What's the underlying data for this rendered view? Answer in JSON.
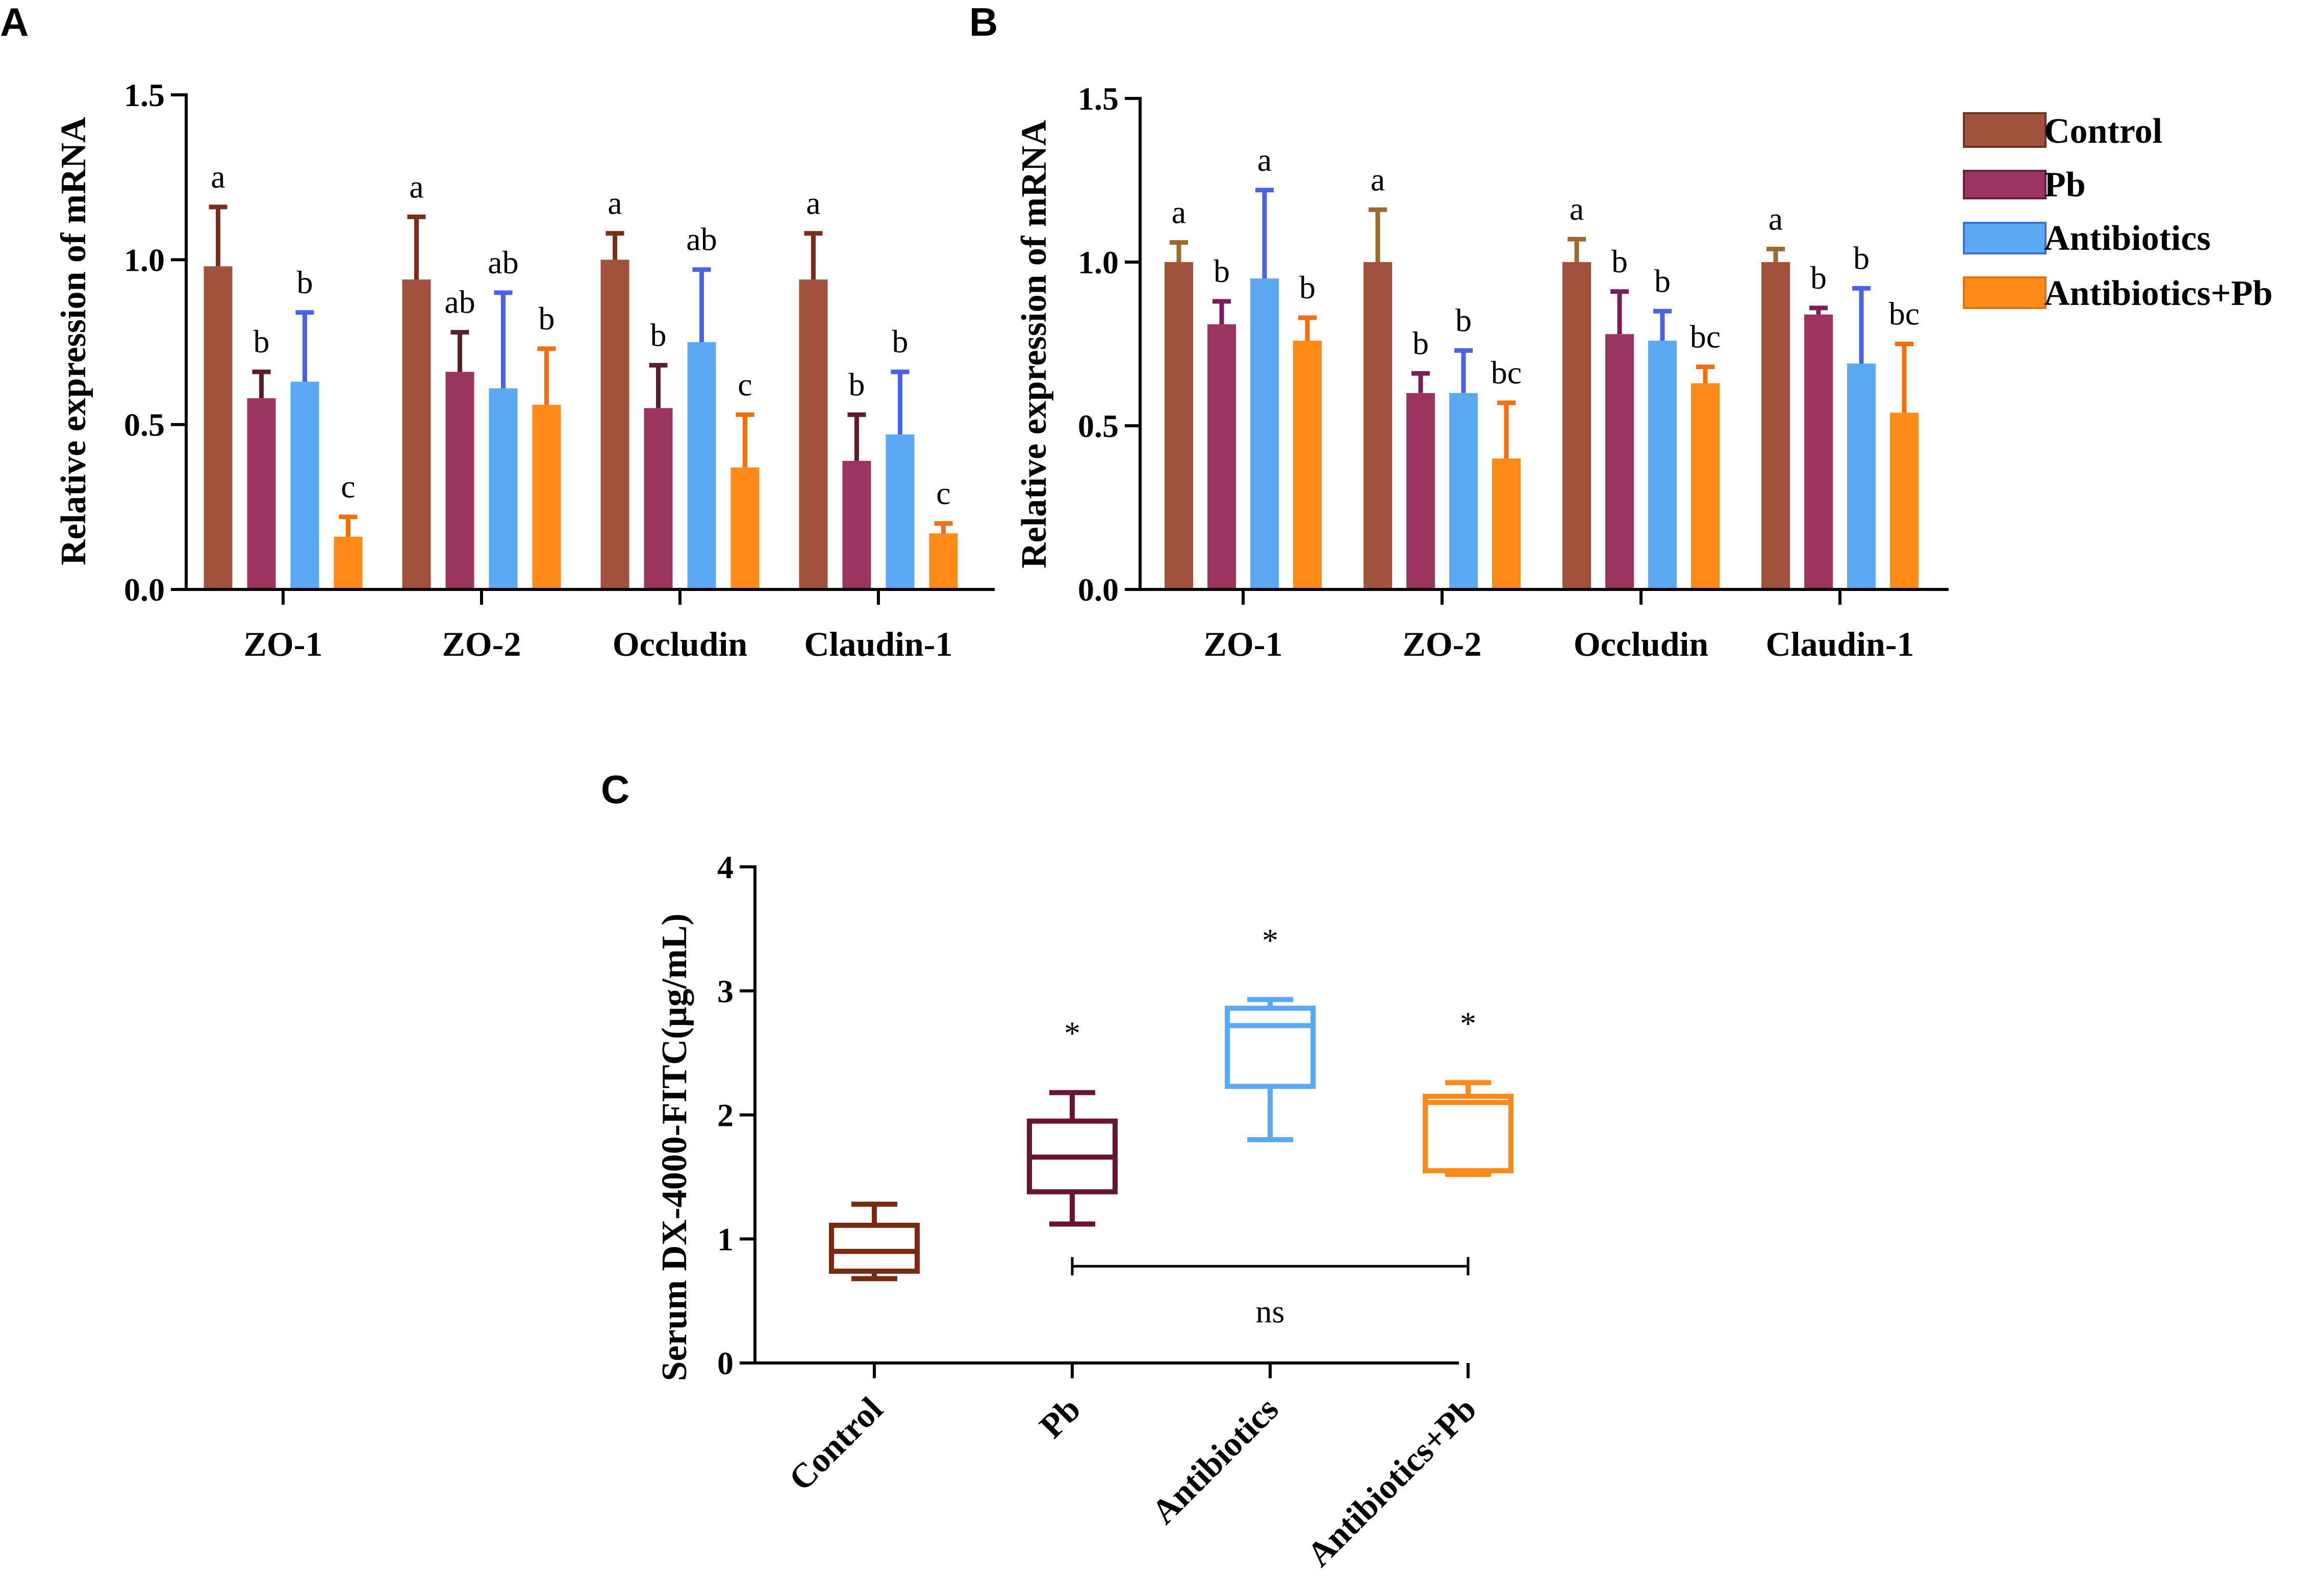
{
  "panels": {
    "a": "A",
    "b": "B",
    "c": "C"
  },
  "legend": {
    "position": "top-right",
    "items": [
      {
        "label": "Control",
        "color": "#A0523D"
      },
      {
        "label": "Pb",
        "color": "#9C3460"
      },
      {
        "label": "Antibiotics",
        "color": "#5AA9F2"
      },
      {
        "label": "Antibiotics+Pb",
        "color": "#FF8A18"
      }
    ]
  },
  "chart_data": [
    {
      "panel": "A",
      "type": "bar",
      "ylabel": "Relative expression of mRNA",
      "ylim": [
        0,
        1.5
      ],
      "yticks": [
        "0.0",
        "0.5",
        "1.0",
        "1.5"
      ],
      "categories": [
        "ZO-1",
        "ZO-2",
        "Occludin",
        "Claudin-1"
      ],
      "series": [
        {
          "name": "Control",
          "fill": "#A0523D",
          "err_color": "#7A2E1A",
          "values": [
            0.98,
            0.94,
            1.0,
            0.94
          ],
          "errors": [
            0.18,
            0.19,
            0.08,
            0.14
          ],
          "letters": [
            "a",
            "a",
            "a",
            "a"
          ]
        },
        {
          "name": "Pb",
          "fill": "#9C3460",
          "err_color": "#5A1E2A",
          "values": [
            0.58,
            0.66,
            0.55,
            0.39
          ],
          "errors": [
            0.08,
            0.12,
            0.13,
            0.14
          ],
          "letters": [
            "b",
            "ab",
            "b",
            "b"
          ]
        },
        {
          "name": "Antibiotics",
          "fill": "#5AA9F2",
          "err_color": "#4A62E8",
          "values": [
            0.63,
            0.61,
            0.75,
            0.47
          ],
          "errors": [
            0.21,
            0.29,
            0.22,
            0.19
          ],
          "letters": [
            "b",
            "ab",
            "ab",
            "b"
          ]
        },
        {
          "name": "Antibiotics+Pb",
          "fill": "#FF8A18",
          "err_color": "#F07010",
          "values": [
            0.16,
            0.56,
            0.37,
            0.17
          ],
          "errors": [
            0.06,
            0.17,
            0.16,
            0.03
          ],
          "letters": [
            "c",
            "b",
            "c",
            "c"
          ]
        }
      ]
    },
    {
      "panel": "B",
      "type": "bar",
      "ylabel": "Relative expression of mRNA",
      "ylim": [
        0,
        1.5
      ],
      "yticks": [
        "0.0",
        "0.5",
        "1.0",
        "1.5"
      ],
      "categories": [
        "ZO-1",
        "ZO-2",
        "Occludin",
        "Claudin-1"
      ],
      "series": [
        {
          "name": "Control",
          "fill": "#A0523D",
          "err_color": "#9A6A2E",
          "values": [
            1.0,
            1.0,
            1.0,
            1.0
          ],
          "errors": [
            0.06,
            0.16,
            0.07,
            0.04
          ],
          "letters": [
            "a",
            "a",
            "a",
            "a"
          ]
        },
        {
          "name": "Pb",
          "fill": "#9C3460",
          "err_color": "#7A1E5A",
          "values": [
            0.81,
            0.6,
            0.78,
            0.84
          ],
          "errors": [
            0.07,
            0.06,
            0.13,
            0.02
          ],
          "letters": [
            "b",
            "b",
            "b",
            "b"
          ]
        },
        {
          "name": "Antibiotics",
          "fill": "#5AA9F2",
          "err_color": "#4A62E8",
          "values": [
            0.95,
            0.6,
            0.76,
            0.69
          ],
          "errors": [
            0.27,
            0.13,
            0.09,
            0.23
          ],
          "letters": [
            "a",
            "b",
            "b",
            "b"
          ]
        },
        {
          "name": "Antibiotics+Pb",
          "fill": "#FF8A18",
          "err_color": "#F07010",
          "values": [
            0.76,
            0.4,
            0.63,
            0.54
          ],
          "errors": [
            0.07,
            0.17,
            0.05,
            0.21
          ],
          "letters": [
            "b",
            "bc",
            "bc",
            "bc"
          ]
        }
      ]
    },
    {
      "panel": "C",
      "type": "box",
      "ylabel": "Serum DX-4000-FITC(µg/mL)",
      "ylim": [
        0,
        4
      ],
      "yticks": [
        "0",
        "1",
        "2",
        "3",
        "4"
      ],
      "categories": [
        "Control",
        "Pb",
        "Antibiotics",
        "Antibiotics+Pb"
      ],
      "boxes": [
        {
          "name": "Control",
          "color": "#7A2A10",
          "min": 0.68,
          "q1": 0.74,
          "median": 0.9,
          "q3": 1.11,
          "max": 1.28,
          "sig": ""
        },
        {
          "name": "Pb",
          "color": "#6A1530",
          "min": 1.12,
          "q1": 1.38,
          "median": 1.66,
          "q3": 1.95,
          "max": 2.18,
          "sig": "*"
        },
        {
          "name": "Antibiotics",
          "color": "#5AA9F2",
          "min": 1.8,
          "q1": 2.23,
          "median": 2.72,
          "q3": 2.86,
          "max": 2.93,
          "sig": "*"
        },
        {
          "name": "Antibiotics+Pb",
          "color": "#FF8A18",
          "min": 1.52,
          "q1": 1.55,
          "median": 2.1,
          "q3": 2.15,
          "max": 2.26,
          "sig": "*"
        }
      ],
      "bracket": {
        "from": "Pb",
        "to": "Antibiotics+Pb",
        "y": 0.78,
        "label": "ns"
      }
    }
  ]
}
